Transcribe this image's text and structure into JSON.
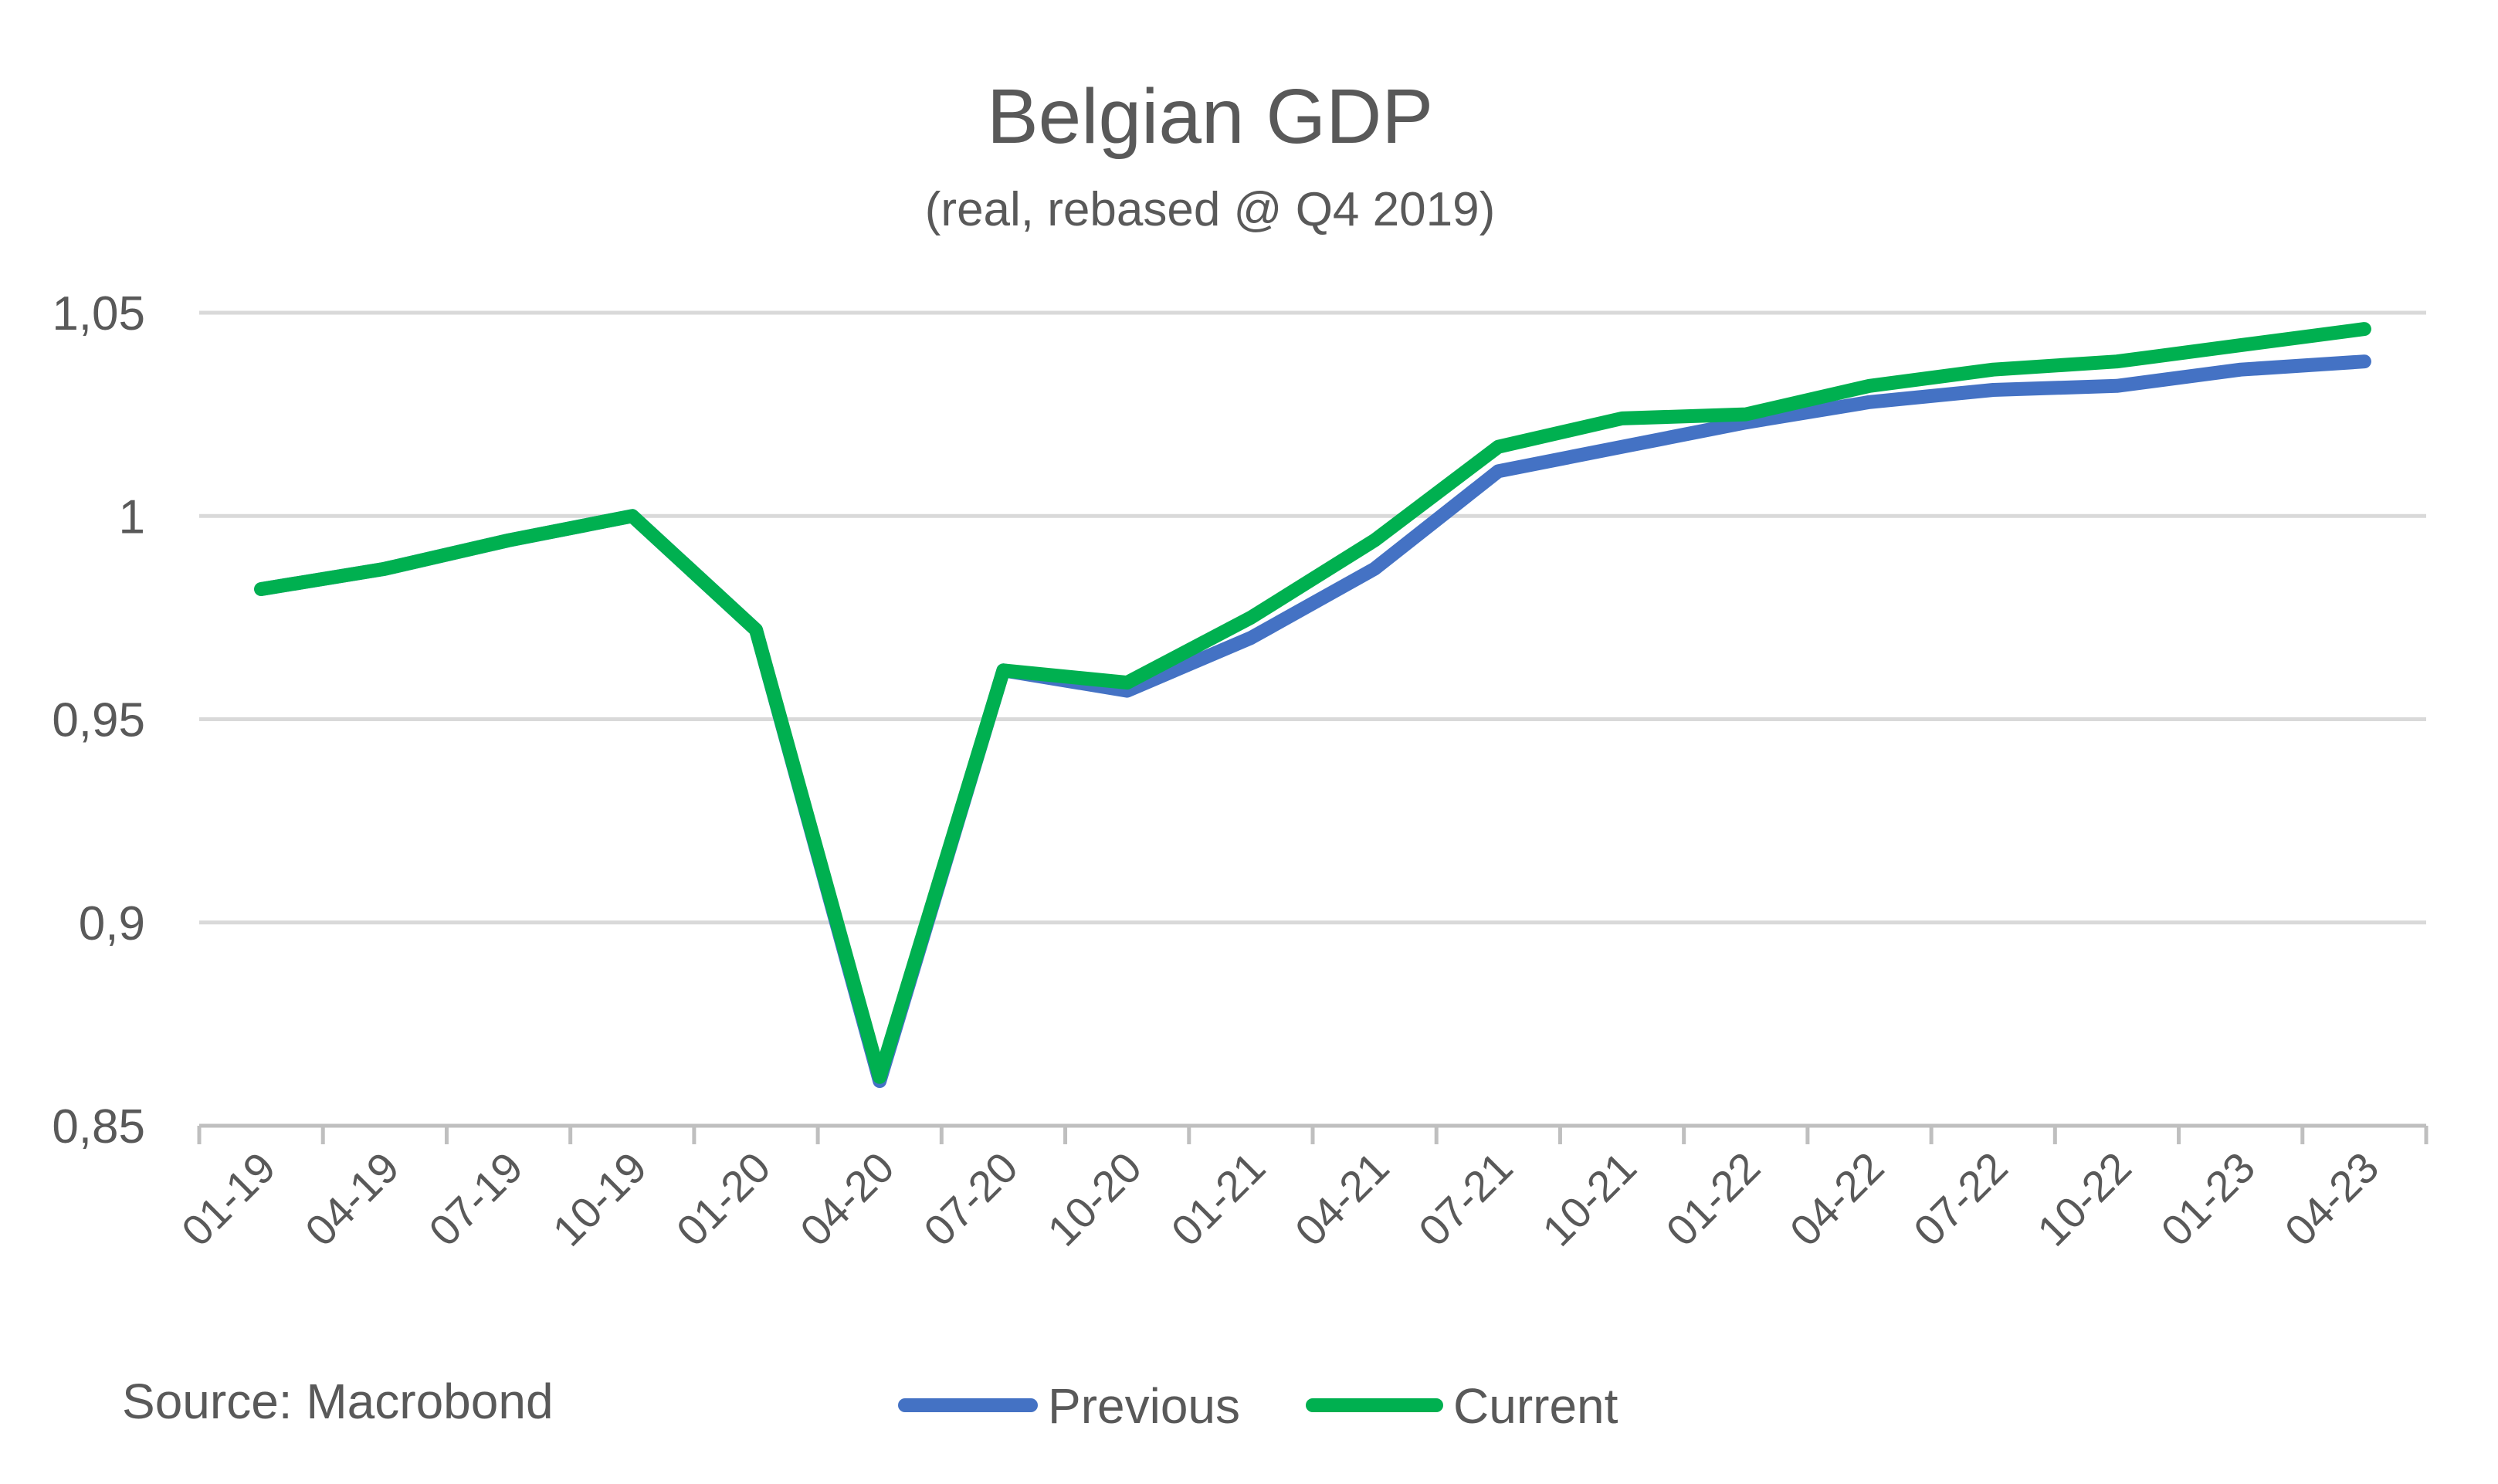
{
  "chart_data": {
    "type": "line",
    "title": "Belgian GDP",
    "subtitle": "(real, rebased @ Q4 2019)",
    "source": "Source: Macrobond",
    "categories": [
      "01-19",
      "04-19",
      "07-19",
      "10-19",
      "01-20",
      "04-20",
      "07-20",
      "10-20",
      "01-21",
      "04-21",
      "07-21",
      "10-21",
      "01-22",
      "04-22",
      "07-22",
      "10-22",
      "01-23",
      "04-23"
    ],
    "ylim": [
      0.85,
      1.05
    ],
    "yticks": [
      {
        "value": 0.85,
        "label": "0,85"
      },
      {
        "value": 0.9,
        "label": "0,9"
      },
      {
        "value": 0.95,
        "label": "0,95"
      },
      {
        "value": 1.0,
        "label": "1"
      },
      {
        "value": 1.05,
        "label": "1,05"
      }
    ],
    "grid": true,
    "legend_position": "bottom",
    "series": [
      {
        "name": "Previous",
        "color": "#4472c4",
        "values": [
          0.982,
          0.987,
          0.994,
          1.0,
          0.972,
          0.861,
          0.962,
          0.957,
          0.97,
          0.987,
          1.011,
          1.017,
          1.023,
          1.028,
          1.031,
          1.032,
          1.036,
          1.038
        ]
      },
      {
        "name": "Current",
        "color": "#00b050",
        "values": [
          0.982,
          0.987,
          0.994,
          1.0,
          0.972,
          0.862,
          0.962,
          0.959,
          0.975,
          0.994,
          1.017,
          1.024,
          1.025,
          1.032,
          1.036,
          1.038,
          1.042,
          1.046
        ]
      }
    ]
  }
}
